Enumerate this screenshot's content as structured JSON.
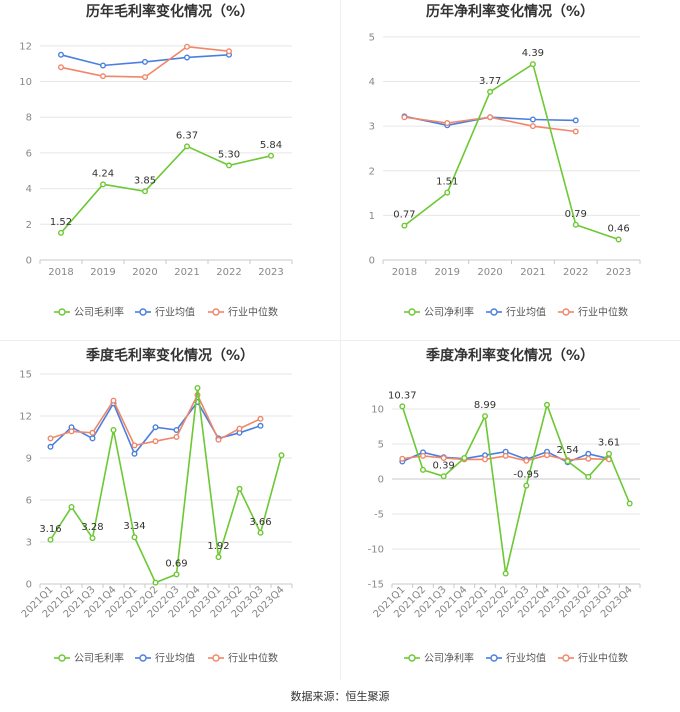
{
  "footer": {
    "source": "数据来源：恒生聚源"
  },
  "colors": {
    "company": "#6cc833",
    "industry_avg": "#4a7fdf",
    "industry_median": "#f0876a",
    "axis_text": "#888888",
    "grid": "#e6e6e6"
  },
  "chart_data": [
    {
      "id": "annual-gross",
      "type": "line",
      "title": "历年毛利率变化情况（%）",
      "categories": [
        "2018",
        "2019",
        "2020",
        "2021",
        "2022",
        "2023"
      ],
      "ylim": [
        0,
        13
      ],
      "yticks": [
        0,
        2,
        4,
        6,
        8,
        10,
        12
      ],
      "series": [
        {
          "name": "公司毛利率",
          "values": [
            1.52,
            4.24,
            3.85,
            6.37,
            5.3,
            5.84
          ],
          "labels": [
            "1.52",
            "4.24",
            "3.85",
            "6.37",
            "5.30",
            "5.84"
          ]
        },
        {
          "name": "行业均值",
          "values": [
            11.5,
            10.9,
            11.1,
            11.35,
            11.5,
            null
          ]
        },
        {
          "name": "行业中位数",
          "values": [
            10.8,
            10.3,
            10.25,
            11.95,
            11.7,
            null
          ]
        }
      ]
    },
    {
      "id": "annual-net",
      "type": "line",
      "title": "历年净利率变化情况（%）",
      "categories": [
        "2018",
        "2019",
        "2020",
        "2021",
        "2022",
        "2023"
      ],
      "ylim": [
        0,
        5.2
      ],
      "yticks": [
        0,
        1,
        2,
        3,
        4,
        5
      ],
      "series": [
        {
          "name": "公司净利率",
          "values": [
            0.77,
            1.51,
            3.77,
            4.39,
            0.79,
            0.46
          ],
          "labels": [
            "0.77",
            "1.51",
            "3.77",
            "4.39",
            "0.79",
            "0.46"
          ]
        },
        {
          "name": "行业均值",
          "values": [
            3.22,
            3.02,
            3.2,
            3.15,
            3.13,
            null
          ]
        },
        {
          "name": "行业中位数",
          "values": [
            3.2,
            3.07,
            3.2,
            3.0,
            2.88,
            null
          ]
        }
      ]
    },
    {
      "id": "quarterly-gross",
      "type": "line",
      "title": "季度毛利率变化情况（%）",
      "categories": [
        "2021Q1",
        "2021Q2",
        "2021Q3",
        "2021Q4",
        "2022Q1",
        "2022Q2",
        "2022Q3",
        "2022Q4",
        "2023Q1",
        "2023Q2",
        "2023Q3",
        "2023Q4"
      ],
      "ylim": [
        0,
        15
      ],
      "yticks": [
        0,
        3,
        6,
        9,
        12,
        15
      ],
      "series": [
        {
          "name": "公司毛利率",
          "values": [
            3.16,
            5.5,
            3.28,
            11.0,
            3.34,
            0.1,
            0.69,
            14.0,
            1.92,
            6.8,
            3.66,
            9.2
          ],
          "labels": [
            "3.16",
            "",
            "3.28",
            "",
            "3.34",
            "",
            "0.69",
            "",
            "1.92",
            "",
            "3.66",
            ""
          ]
        },
        {
          "name": "行业均值",
          "values": [
            9.8,
            11.2,
            10.4,
            12.9,
            9.3,
            11.2,
            11.0,
            13.0,
            10.4,
            10.8,
            11.3,
            null
          ]
        },
        {
          "name": "行业中位数",
          "values": [
            10.4,
            10.9,
            10.8,
            13.1,
            9.9,
            10.2,
            10.5,
            13.5,
            10.3,
            11.1,
            11.8,
            null
          ]
        }
      ]
    },
    {
      "id": "quarterly-net",
      "type": "line",
      "title": "季度净利率变化情况（%）",
      "categories": [
        "2021Q1",
        "2021Q2",
        "2021Q3",
        "2021Q4",
        "2022Q1",
        "2022Q2",
        "2022Q3",
        "2022Q4",
        "2023Q1",
        "2023Q2",
        "2023Q3",
        "2023Q4"
      ],
      "ylim": [
        -15,
        15
      ],
      "yticks": [
        -15,
        -10,
        -5,
        0,
        5,
        10
      ],
      "series": [
        {
          "name": "公司净利率",
          "values": [
            10.37,
            1.3,
            0.39,
            3.0,
            8.99,
            -13.5,
            -0.95,
            10.6,
            2.54,
            0.3,
            3.61,
            -3.5
          ],
          "labels": [
            "10.37",
            "",
            "0.39",
            "",
            "8.99",
            "",
            "-0.95",
            "",
            "2.54",
            "",
            "3.61",
            ""
          ]
        },
        {
          "name": "行业均值",
          "values": [
            2.5,
            3.8,
            3.1,
            2.9,
            3.4,
            3.9,
            2.8,
            3.9,
            2.4,
            3.6,
            2.9,
            null
          ]
        },
        {
          "name": "行业中位数",
          "values": [
            2.9,
            3.3,
            3.0,
            2.8,
            2.8,
            3.3,
            2.6,
            3.4,
            2.7,
            2.9,
            2.8,
            null
          ]
        }
      ]
    }
  ]
}
